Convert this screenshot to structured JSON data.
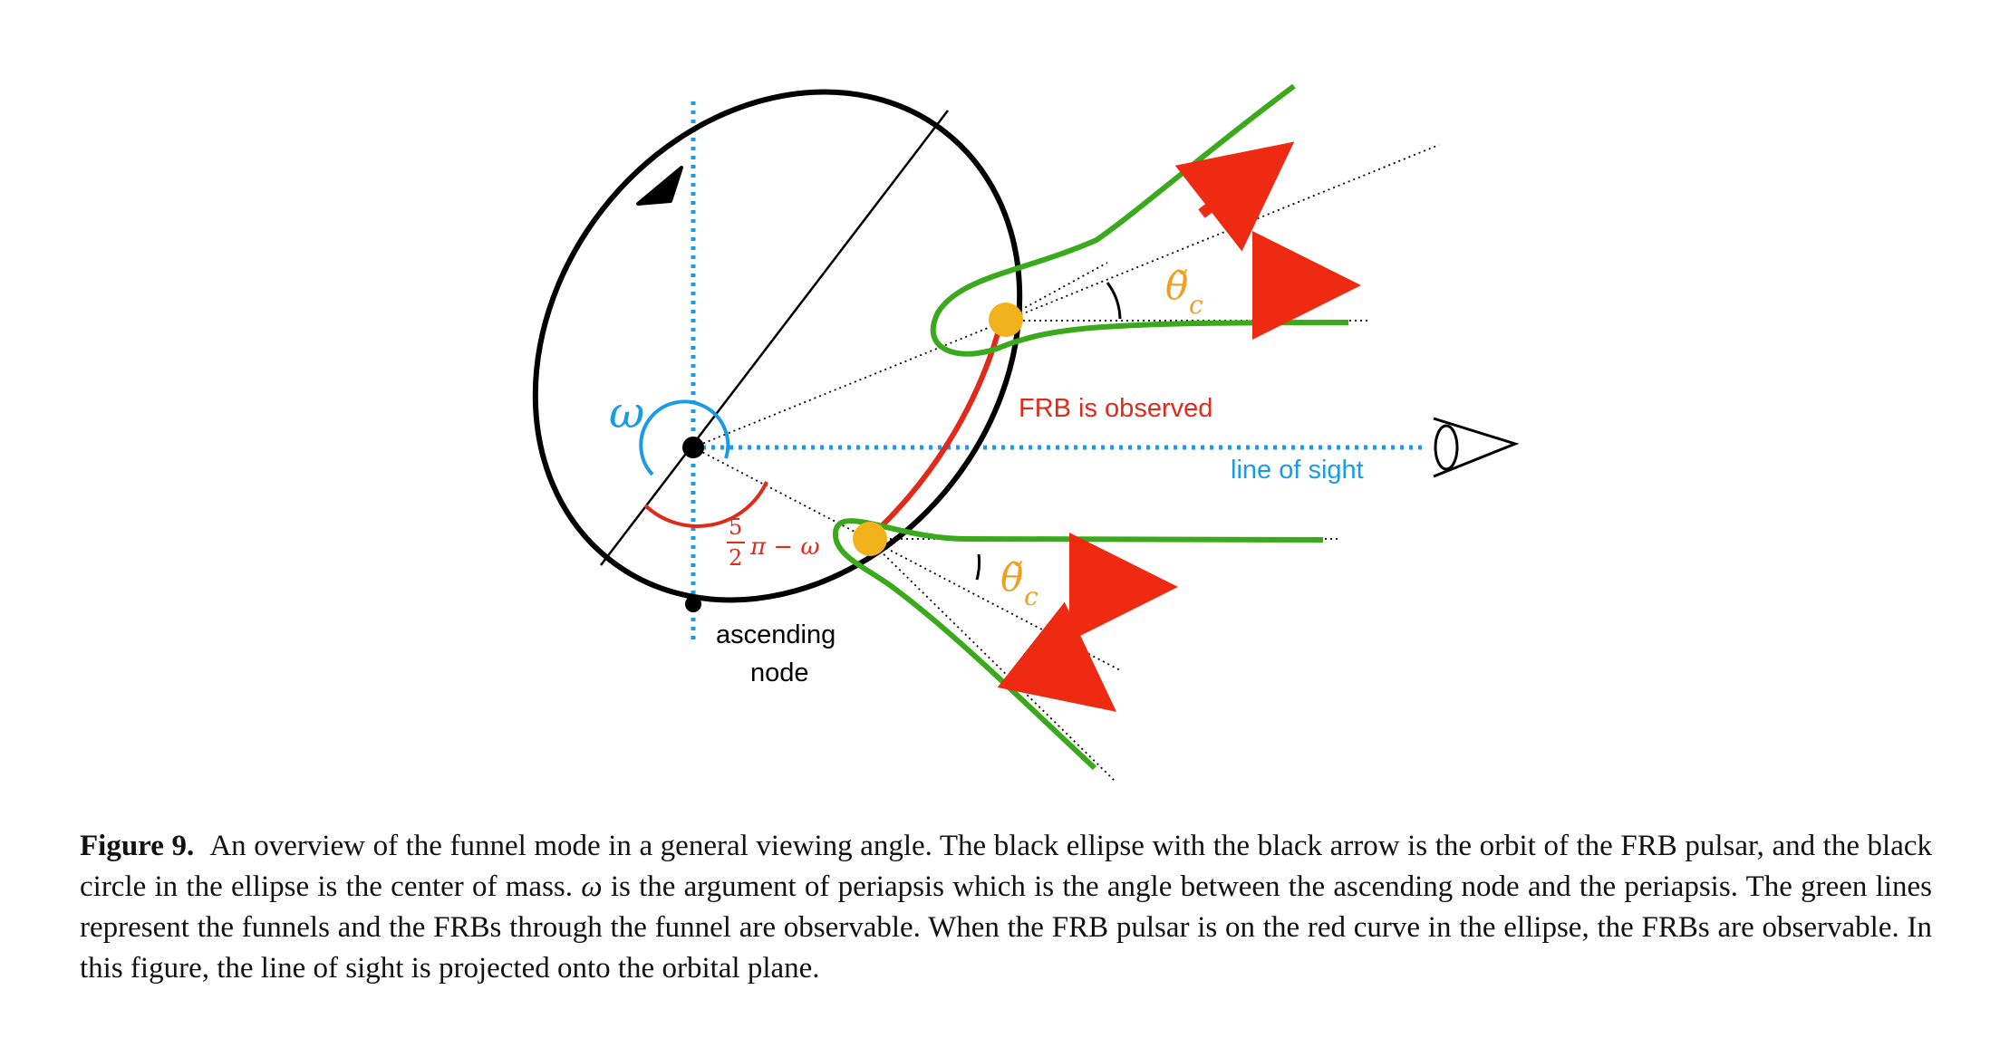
{
  "figure": {
    "labels": {
      "omega": "ω",
      "angle_numer": "5",
      "angle_denom": "2",
      "angle_rest": "π − ω",
      "theta_c": "θ̃",
      "theta_c_sub": "c",
      "frb_observed": "FRB is observed",
      "line_of_sight": "line of sight",
      "ascending_1": "ascending",
      "ascending_2": "node"
    },
    "colors": {
      "orbit": "#000000",
      "sight_line": "#1a9be6",
      "funnel": "#3aaa1c",
      "observed_arc": "#e02a1a",
      "pulsar": "#f2b21c",
      "arrow": "#ee2a12",
      "theta_label": "#f0a020"
    }
  },
  "caption": {
    "label": "Figure 9.",
    "text_1": "An overview of the funnel mode in a general viewing angle. The black ellipse with the black arrow is the orbit of the FRB pulsar, and the black circle in the ellipse is the center of mass.",
    "omega": "ω",
    "text_2": "is the argument of periapsis which is the angle between the ascending node and the periapsis. The green lines represent the funnels and the FRBs through the funnel are observable. When the FRB pulsar is on the red curve in the ellipse, the FRBs are observable. In this figure, the line of sight is projected onto the orbital plane."
  }
}
